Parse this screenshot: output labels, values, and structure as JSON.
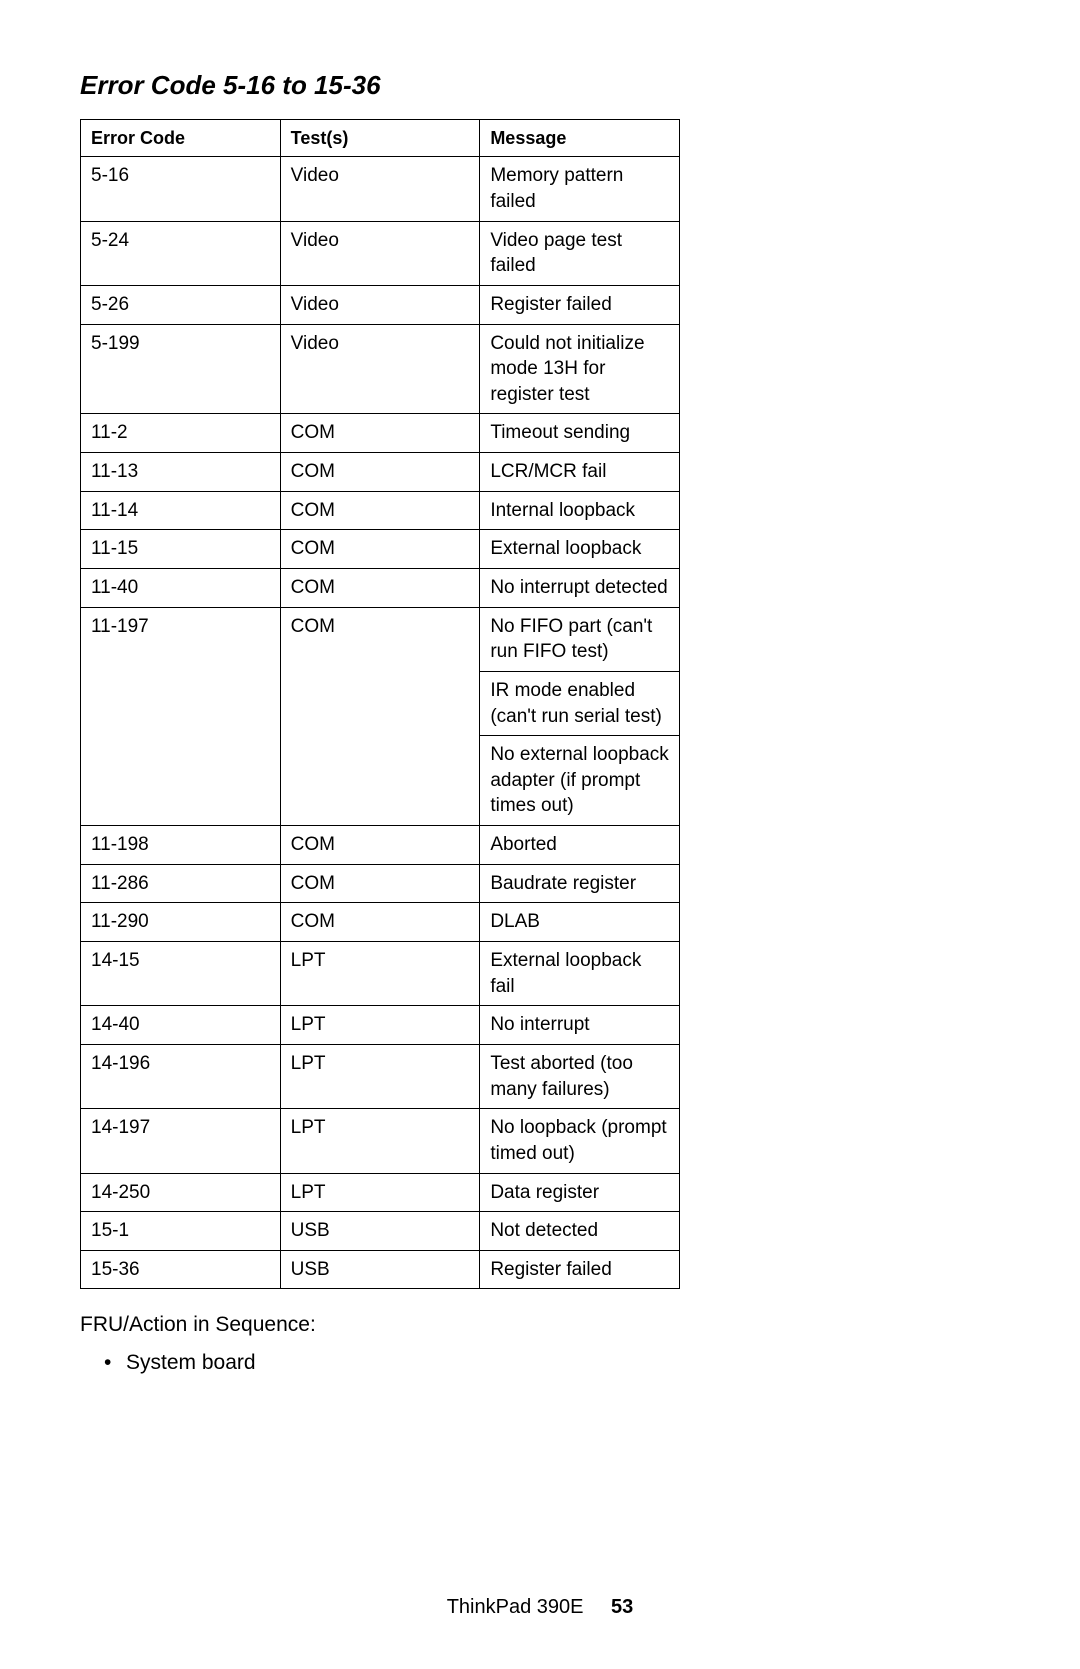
{
  "title": "Error Code 5-16 to 15-36",
  "table": {
    "headers": {
      "c1": "Error Code",
      "c2": "Test(s)",
      "c3": "Message"
    },
    "rows": [
      {
        "code": "5-16",
        "test": "Video",
        "msg": "Memory pattern failed"
      },
      {
        "code": "5-24",
        "test": "Video",
        "msg": "Video page test failed"
      },
      {
        "code": "5-26",
        "test": "Video",
        "msg": "Register failed"
      },
      {
        "code": "5-199",
        "test": "Video",
        "msg": "Could not initialize mode 13H for register test"
      },
      {
        "code": "11-2",
        "test": "COM",
        "msg": "Timeout sending"
      },
      {
        "code": "11-13",
        "test": "COM",
        "msg": "LCR/MCR fail"
      },
      {
        "code": "11-14",
        "test": "COM",
        "msg": "Internal loopback"
      },
      {
        "code": "11-15",
        "test": "COM",
        "msg": "External loopback"
      },
      {
        "code": "11-40",
        "test": "COM",
        "msg": "No interrupt detected"
      },
      {
        "code": "11-197",
        "test": "COM",
        "msgs": [
          "No FIFO part (can't run FIFO test)",
          "IR mode enabled (can't run serial test)",
          "No external loopback adapter (if prompt times out)"
        ]
      },
      {
        "code": "11-198",
        "test": "COM",
        "msg": "Aborted"
      },
      {
        "code": "11-286",
        "test": "COM",
        "msg": "Baudrate register"
      },
      {
        "code": "11-290",
        "test": "COM",
        "msg": "DLAB"
      },
      {
        "code": "14-15",
        "test": "LPT",
        "msg": "External loopback fail"
      },
      {
        "code": "14-40",
        "test": "LPT",
        "msg": "No interrupt"
      },
      {
        "code": "14-196",
        "test": "LPT",
        "msg": "Test aborted (too many failures)"
      },
      {
        "code": "14-197",
        "test": "LPT",
        "msg": "No loopback (prompt timed out)"
      },
      {
        "code": "14-250",
        "test": "LPT",
        "msg": "Data register"
      },
      {
        "code": "15-1",
        "test": "USB",
        "msg": "Not detected"
      },
      {
        "code": "15-36",
        "test": "USB",
        "msg": "Register failed"
      }
    ]
  },
  "after_label": "FRU/Action in Sequence:",
  "fru_items": [
    "System board"
  ],
  "footer": {
    "model": "ThinkPad 390E",
    "page": "53"
  }
}
